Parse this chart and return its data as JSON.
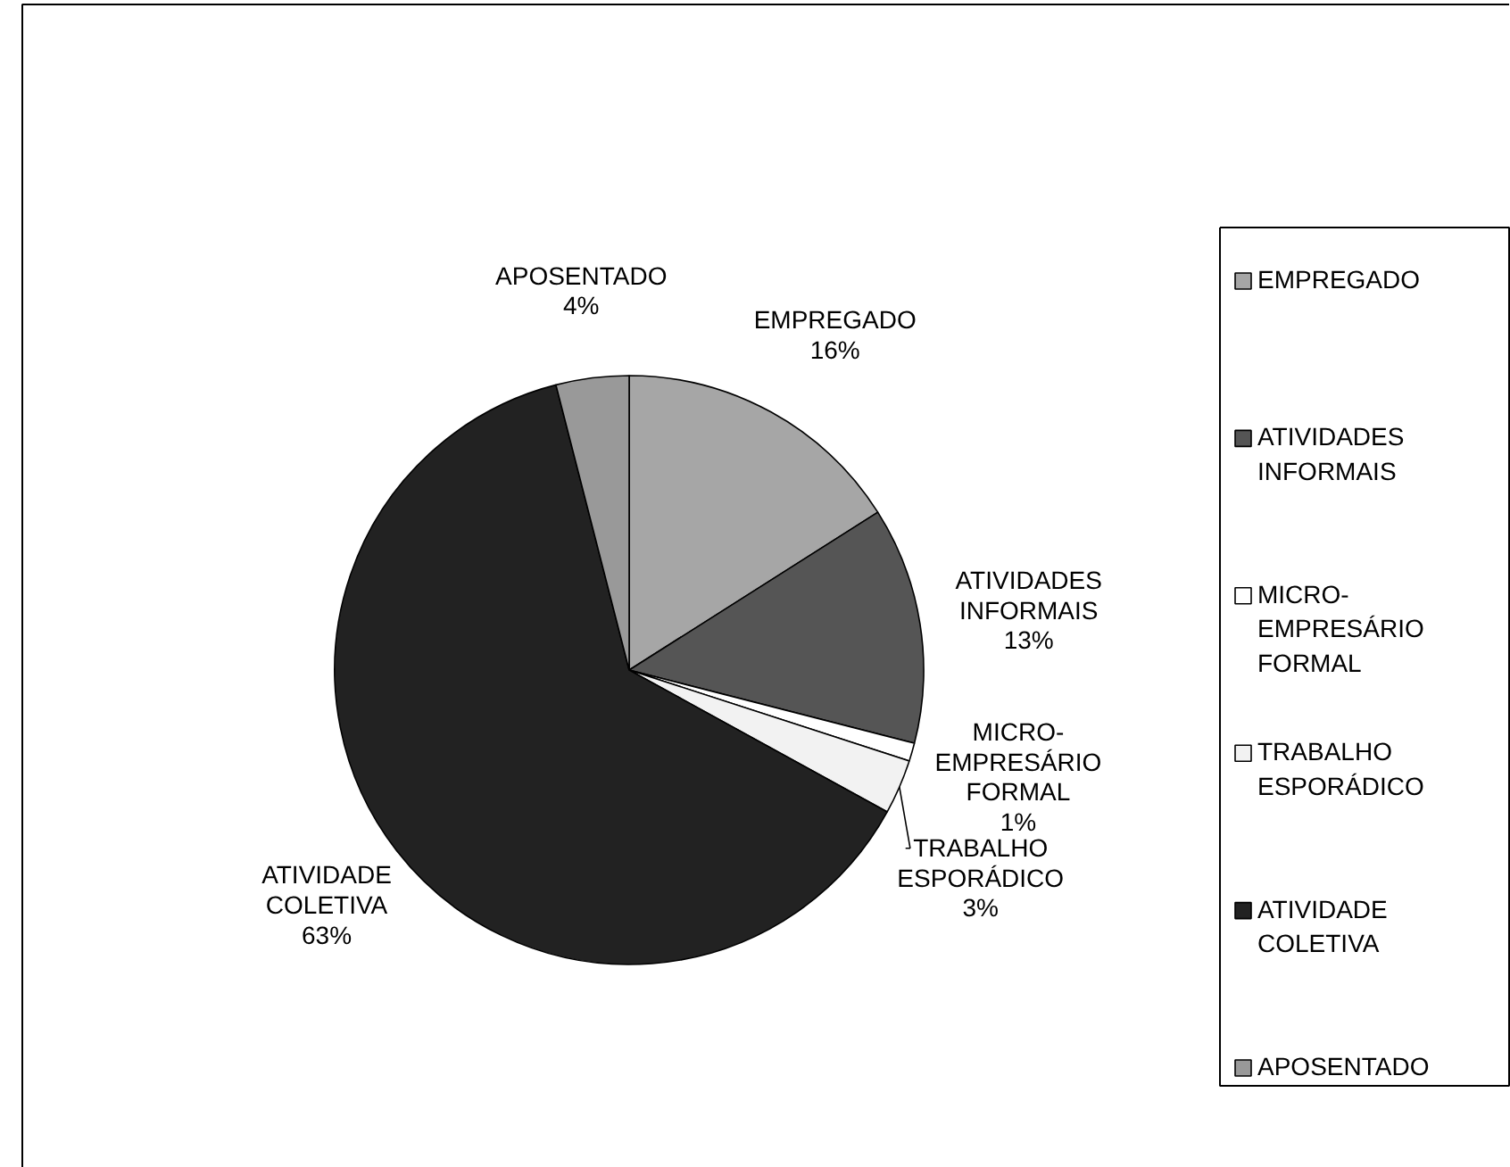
{
  "chart_data": {
    "type": "pie",
    "categories": [
      "EMPREGADO",
      "ATIVIDADES INFORMAIS",
      "MICRO-EMPRESÁRIO FORMAL",
      "TRABALHO ESPORÁDICO",
      "ATIVIDADE COLETIVA",
      "APOSENTADO"
    ],
    "values": [
      16,
      13,
      1,
      3,
      63,
      4
    ],
    "colors": [
      "#a6a6a6",
      "#555555",
      "#ffffff",
      "#f2f2f2",
      "#222222",
      "#999999"
    ],
    "value_labels": [
      "16%",
      "13%",
      "1%",
      "3%",
      "63%",
      "4%"
    ],
    "legend": "right"
  }
}
